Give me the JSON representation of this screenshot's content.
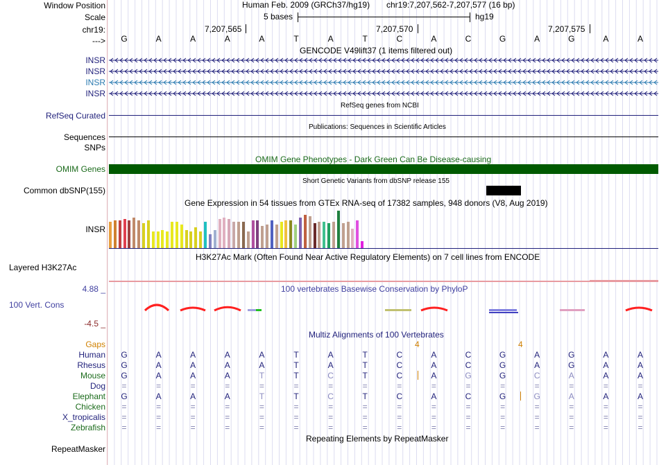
{
  "colors": {
    "track_label": "#1f1f7a",
    "omim": "#005a00",
    "omim_label": "#1a6a1a",
    "gencode": "#1f1f7a",
    "gencode_selected": "#2a7ab0",
    "gaps": "#d08000",
    "conservation_pos": "#ff2020",
    "conservation_label_pos": "#4040a0",
    "conservation_label_neg": "#8b2a2a",
    "refline": "#1f1f7a",
    "h3k27ac": "#e89aa0"
  },
  "ruler": {
    "window_position_label": "Window Position",
    "scale_label": "Scale",
    "chr_label": "chr19:",
    "arrow_label": "--->",
    "assembly_title": "Human Feb. 2009 (GRCh37/hg19)",
    "coordinates": "chr19:7,207,562-7,207,577 (16 bp)",
    "scale_text": "5 bases",
    "assembly_short": "hg19",
    "ticks": [
      "7,207,565",
      "7,207,570",
      "7,207,575"
    ]
  },
  "sequence": [
    "G",
    "A",
    "A",
    "A",
    "A",
    "T",
    "A",
    "T",
    "C",
    "A",
    "C",
    "G",
    "A",
    "G",
    "A",
    "A"
  ],
  "gencode": {
    "title": "GENCODE V49lift37 (1 items filtered out)",
    "rows": [
      "INSR",
      "INSR",
      "INSR",
      "INSR"
    ]
  },
  "refseq": {
    "title": "RefSeq genes from NCBI",
    "label": "RefSeq Curated"
  },
  "publications": {
    "title": "Publications: Sequences in Scientific Articles",
    "label": "Sequences"
  },
  "snps_label": "SNPs",
  "omim": {
    "title": "OMIM Gene Phenotypes - Dark Green Can Be Disease-causing",
    "label": "OMIM Genes"
  },
  "dbsnp": {
    "title": "Short Genetic Variants from dbSNP release 155",
    "label": "Common dbSNP(155)"
  },
  "gtex": {
    "title": "Gene Expression in 54 tissues from GTEx RNA-seq of 17382 samples, 948 donors (V8, Aug 2019)",
    "label": "INSR",
    "values": [
      38,
      40,
      40,
      42,
      40,
      44,
      40,
      36,
      40,
      24,
      24,
      26,
      24,
      38,
      38,
      34,
      26,
      24,
      30,
      24,
      38,
      20,
      26,
      42,
      44,
      42,
      38,
      38,
      38,
      24,
      40,
      40,
      32,
      34,
      40,
      34,
      38,
      40,
      40,
      34,
      44,
      48,
      46,
      36,
      38,
      38,
      36,
      38,
      54,
      36,
      38,
      28,
      40,
      10
    ],
    "bar_colors": [
      "#e8a040",
      "#d08030",
      "#c04040",
      "#e04050",
      "#a04040",
      "#c08a6a",
      "#c08a6a",
      "#d8d020",
      "#d8d020",
      "#e8e820",
      "#e8e820",
      "#e8e820",
      "#e8e820",
      "#e8e820",
      "#e8e820",
      "#e8e820",
      "#d8d020",
      "#d8d020",
      "#d8d020",
      "#d8d020",
      "#20c0c0",
      "#8080c0",
      "#a0b0d0",
      "#e0b0c0",
      "#e0b0c0",
      "#d8a8b8",
      "#c8a8a8",
      "#c0a090",
      "#8a6a50",
      "#c0a090",
      "#b050a0",
      "#804080",
      "#c0a090",
      "#c0a090",
      "#5060c0",
      "#c0a090",
      "#e8e820",
      "#f0c040",
      "#8a8a20",
      "#a0d080",
      "#8060b0",
      "#c06040",
      "#c0a090",
      "#6a2a2a",
      "#c0a090",
      "#40c090",
      "#20a060",
      "#c0a090",
      "#208040",
      "#c0a090",
      "#c0a090",
      "#e0b0c0",
      "#e050e0",
      "#e020e0"
    ]
  },
  "h3k27ac": {
    "title": "H3K27Ac Mark (Often Found Near Active Regulatory Elements) on 7 cell lines from ENCODE",
    "label": "Layered H3K27Ac"
  },
  "phylop": {
    "title": "100 vertebrates Basewise Conservation by PhyloP",
    "label": "100 Vert. Cons",
    "max_label": "4.88 _",
    "min_label": "-4.5 _"
  },
  "multiz": {
    "title": "Multiz Alignments of 100 Vertebrates",
    "gaps_label": "Gaps",
    "gap_marks": [
      "4",
      "4"
    ],
    "species": [
      {
        "name": "Human",
        "bases": [
          "G",
          "A",
          "A",
          "A",
          "A",
          "T",
          "A",
          "T",
          "C",
          "A",
          "C",
          "G",
          "A",
          "G",
          "A",
          "A"
        ]
      },
      {
        "name": "Rhesus",
        "bases": [
          "G",
          "A",
          "A",
          "A",
          "A",
          "T",
          "A",
          "T",
          "C",
          "A",
          "C",
          "G",
          "A",
          "G",
          "A",
          "A"
        ]
      },
      {
        "name": "Mouse",
        "bases": [
          "G",
          "A",
          "A",
          "A",
          "T",
          "T",
          "C",
          "T",
          "C",
          "A",
          "G",
          "G",
          "C",
          "A",
          "A",
          "A"
        ]
      },
      {
        "name": "Dog",
        "bases": [
          "=",
          "=",
          "=",
          "=",
          "=",
          "=",
          "=",
          "=",
          "=",
          "=",
          "=",
          "=",
          "=",
          "=",
          "=",
          "="
        ]
      },
      {
        "name": "Elephant",
        "bases": [
          "G",
          "A",
          "A",
          "A",
          "T",
          "T",
          "C",
          "T",
          "C",
          "A",
          "C",
          "G",
          "G",
          "A",
          "A",
          "A"
        ]
      },
      {
        "name": "Chicken",
        "bases": [
          "=",
          "=",
          "=",
          "=",
          "=",
          "=",
          "=",
          "=",
          "=",
          "=",
          "=",
          "=",
          "=",
          "=",
          "=",
          "="
        ]
      },
      {
        "name": "X_tropicalis",
        "bases": [
          "=",
          "=",
          "=",
          "=",
          "=",
          "=",
          "=",
          "=",
          "=",
          "=",
          "=",
          "=",
          "=",
          "=",
          "=",
          "="
        ]
      },
      {
        "name": "Zebrafish",
        "bases": [
          "=",
          "=",
          "=",
          "=",
          "=",
          "=",
          "=",
          "=",
          "=",
          "=",
          "=",
          "=",
          "=",
          "=",
          "=",
          "="
        ]
      }
    ]
  },
  "repeatmasker": {
    "title": "Repeating Elements by RepeatMasker",
    "label": "RepeatMasker"
  }
}
